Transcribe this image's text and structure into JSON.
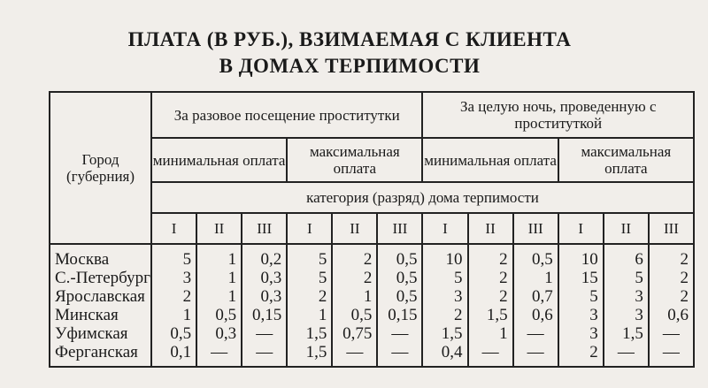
{
  "title": {
    "line1": "ПЛАТА (В РУБ.), ВЗИМАЕМАЯ С КЛИЕНТА",
    "line2": "В ДОМАХ ТЕРПИМОСТИ"
  },
  "table": {
    "city_header": "Город (губерния)",
    "group_headers": [
      "За разовое посещение проститутки",
      "За целую ночь, проведенную с проституткой"
    ],
    "sub_headers": [
      "минимальная оплата",
      "максимальная оплата",
      "минимальная оплата",
      "максимальная оплата"
    ],
    "category_header": "категория (разряд) дома терпимости",
    "categories": [
      "I",
      "II",
      "III",
      "I",
      "II",
      "III",
      "I",
      "II",
      "III",
      "I",
      "II",
      "III"
    ],
    "rows": [
      {
        "city": "Москва",
        "values": [
          "5",
          "1",
          "0,2",
          "5",
          "2",
          "0,5",
          "10",
          "2",
          "0,5",
          "10",
          "6",
          "2"
        ]
      },
      {
        "city": "С.-Петербург",
        "values": [
          "3",
          "1",
          "0,3",
          "5",
          "2",
          "0,5",
          "5",
          "2",
          "1",
          "15",
          "5",
          "2"
        ]
      },
      {
        "city": "Ярославская",
        "values": [
          "2",
          "1",
          "0,3",
          "2",
          "1",
          "0,5",
          "3",
          "2",
          "0,7",
          "5",
          "3",
          "2"
        ]
      },
      {
        "city": "Минская",
        "values": [
          "1",
          "0,5",
          "0,15",
          "1",
          "0,5",
          "0,15",
          "2",
          "1,5",
          "0,6",
          "3",
          "3",
          "0,6"
        ]
      },
      {
        "city": "Уфимская",
        "values": [
          "0,5",
          "0,3",
          "—",
          "1,5",
          "0,75",
          "—",
          "1,5",
          "1",
          "—",
          "3",
          "1,5",
          "—"
        ]
      },
      {
        "city": "Ферганская",
        "values": [
          "0,1",
          "—",
          "—",
          "1,5",
          "—",
          "—",
          "0,4",
          "—",
          "—",
          "2",
          "—",
          "—"
        ]
      }
    ]
  }
}
